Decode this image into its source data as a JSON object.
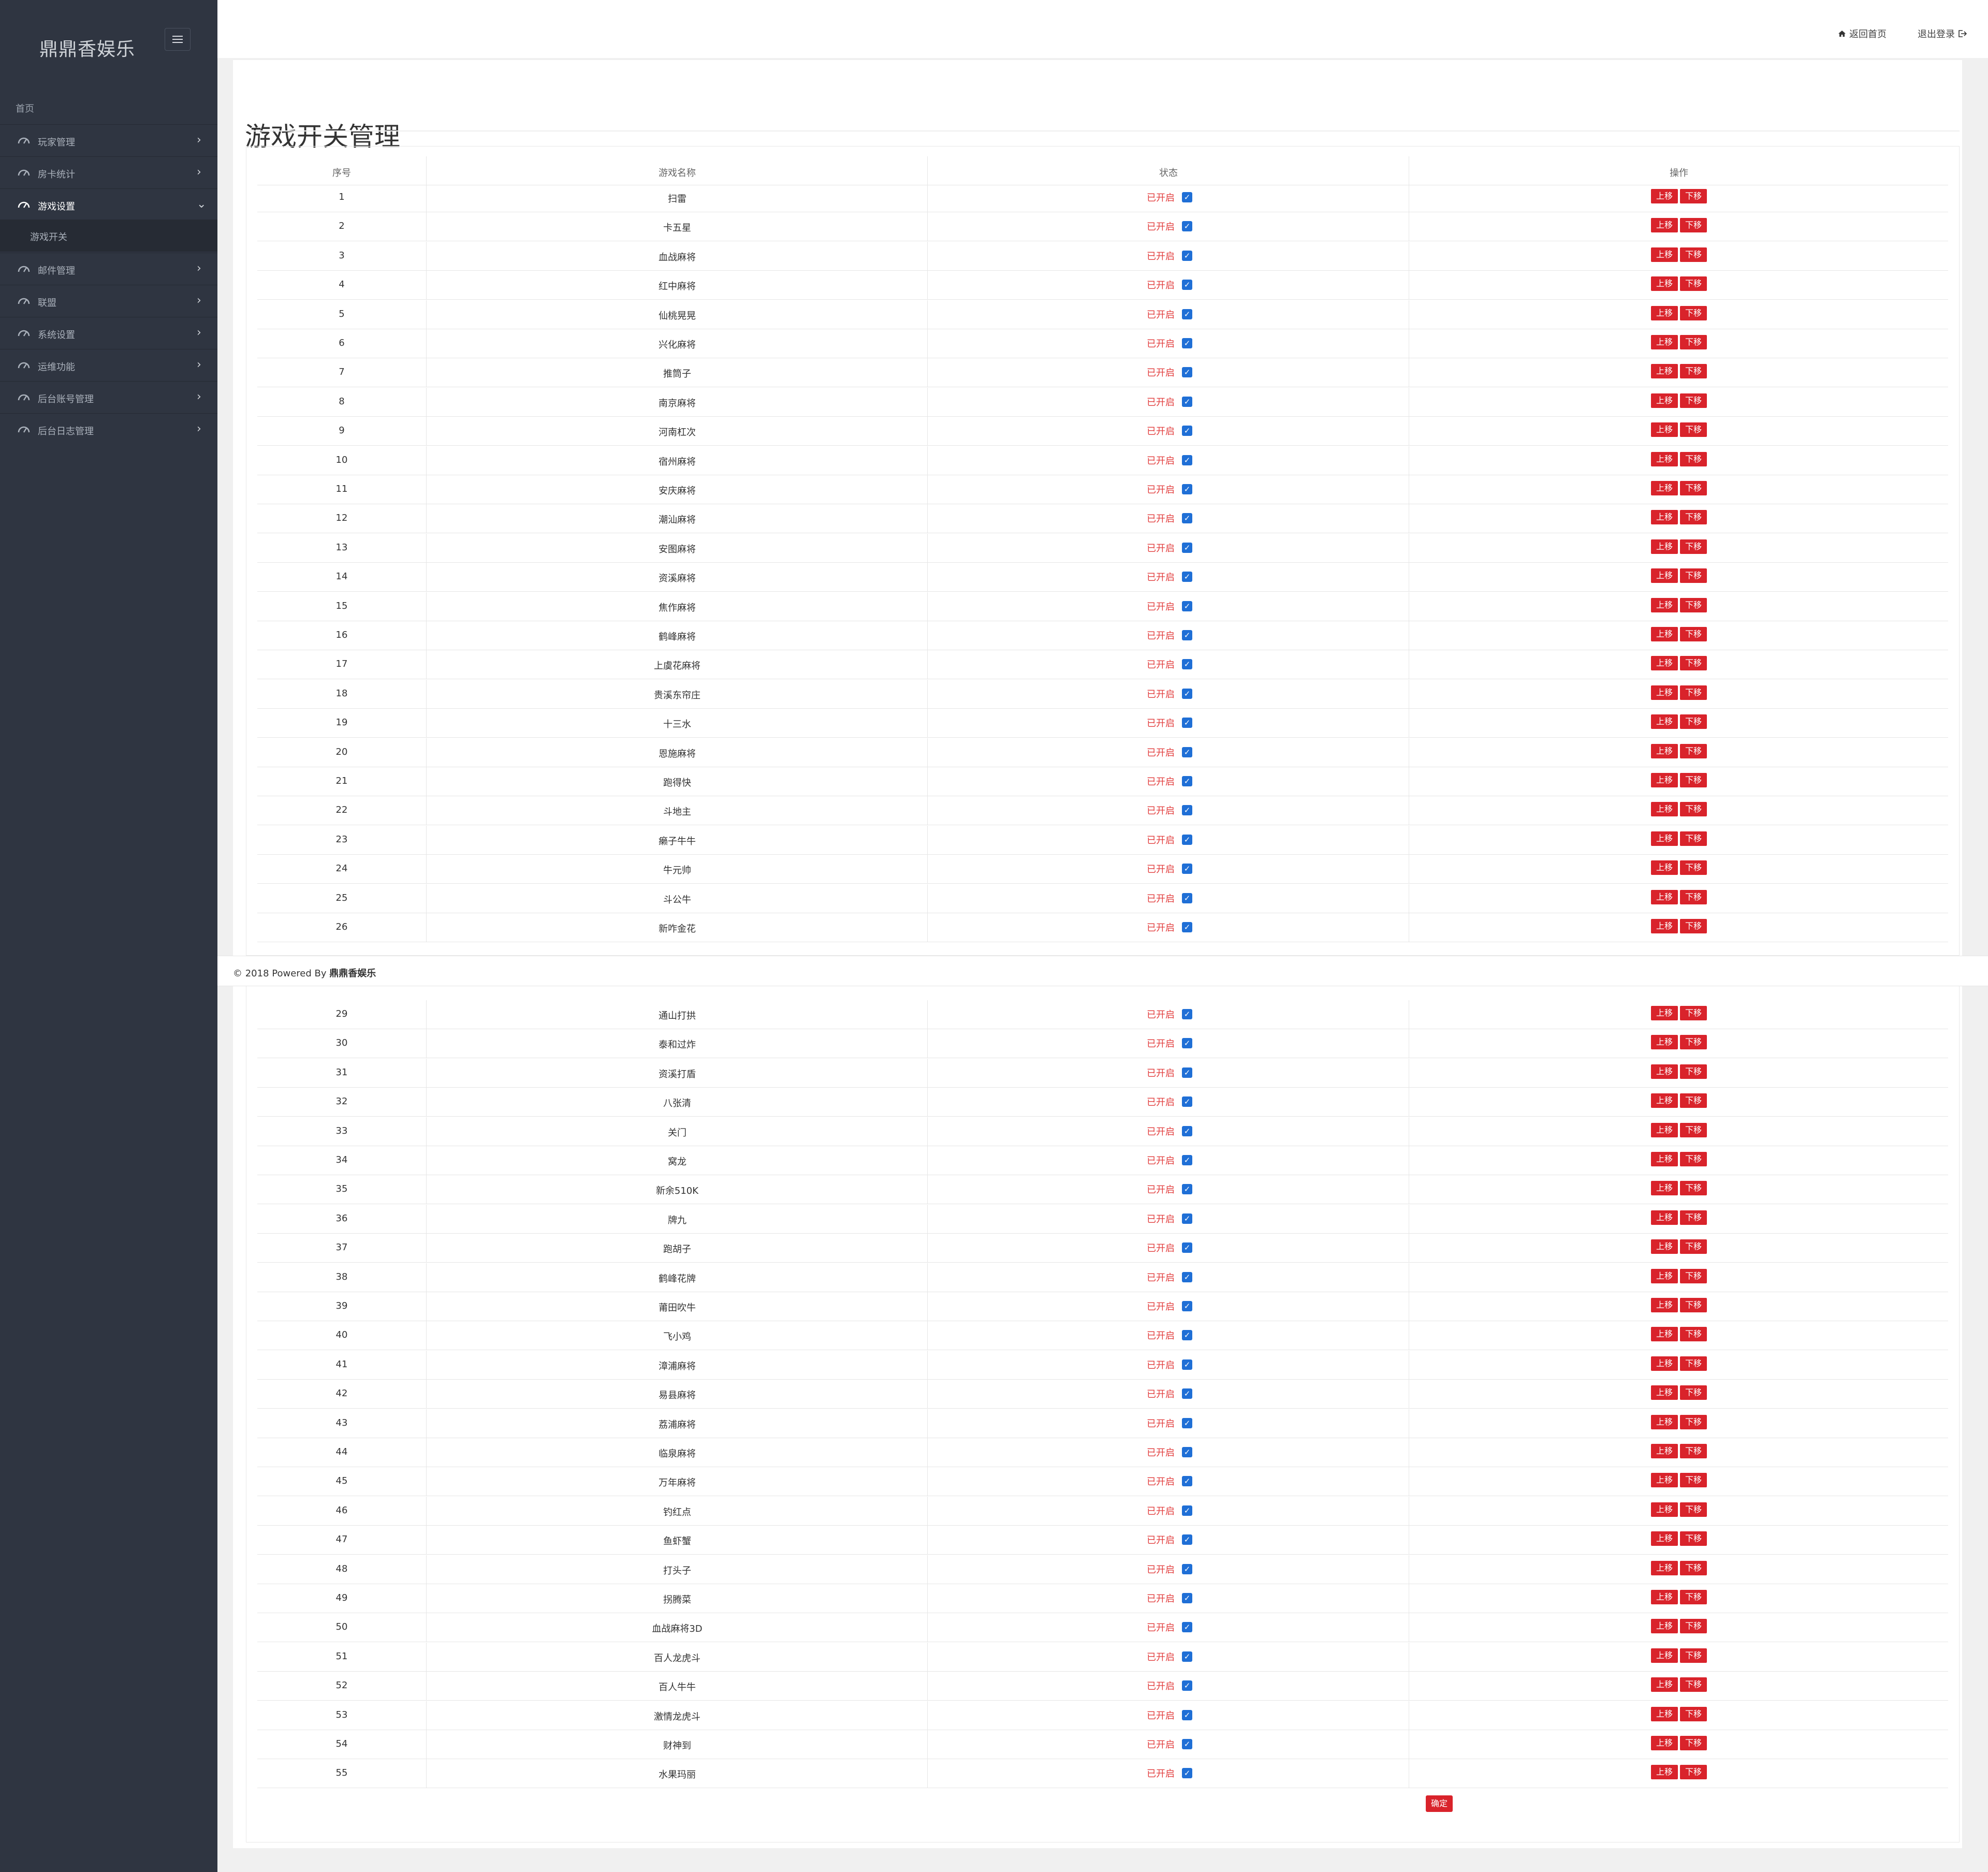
{
  "sidebar": {
    "brand": "鼎鼎香娱乐",
    "home": "首页",
    "items": [
      {
        "label": "玩家管理",
        "active": false
      },
      {
        "label": "房卡统计",
        "active": false
      },
      {
        "label": "游戏设置",
        "active": true
      },
      {
        "label": "邮件管理",
        "active": false
      },
      {
        "label": "联盟",
        "active": false
      },
      {
        "label": "系统设置",
        "active": false
      },
      {
        "label": "运维功能",
        "active": false
      },
      {
        "label": "后台账号管理",
        "active": false
      },
      {
        "label": "后台日志管理",
        "active": false
      }
    ],
    "submenu": "游戏开关"
  },
  "header": {
    "home_link": "返回首页",
    "logout_link": "退出登录"
  },
  "page": {
    "title": "游戏开关管理"
  },
  "table": {
    "columns": [
      "序号",
      "游戏名称",
      "状态",
      "操作"
    ],
    "status_label": "已开启",
    "up_label": "上移",
    "down_label": "下移",
    "rows": [
      {
        "idx": "1",
        "name": "扫雷"
      },
      {
        "idx": "2",
        "name": "卡五星"
      },
      {
        "idx": "3",
        "name": "血战麻将"
      },
      {
        "idx": "4",
        "name": "红中麻将"
      },
      {
        "idx": "5",
        "name": "仙桃晃晃"
      },
      {
        "idx": "6",
        "name": "兴化麻将"
      },
      {
        "idx": "7",
        "name": "推筒子"
      },
      {
        "idx": "8",
        "name": "南京麻将"
      },
      {
        "idx": "9",
        "name": "河南杠次"
      },
      {
        "idx": "10",
        "name": "宿州麻将"
      },
      {
        "idx": "11",
        "name": "安庆麻将"
      },
      {
        "idx": "12",
        "name": "潮汕麻将"
      },
      {
        "idx": "13",
        "name": "安图麻将"
      },
      {
        "idx": "14",
        "name": "资溪麻将"
      },
      {
        "idx": "15",
        "name": "焦作麻将"
      },
      {
        "idx": "16",
        "name": "鹤峰麻将"
      },
      {
        "idx": "17",
        "name": "上虞花麻将"
      },
      {
        "idx": "18",
        "name": "贵溪东帘庄"
      },
      {
        "idx": "19",
        "name": "十三水"
      },
      {
        "idx": "20",
        "name": "恩施麻将"
      },
      {
        "idx": "21",
        "name": "跑得快"
      },
      {
        "idx": "22",
        "name": "斗地主"
      },
      {
        "idx": "23",
        "name": "癞子牛牛"
      },
      {
        "idx": "24",
        "name": "牛元帅"
      },
      {
        "idx": "25",
        "name": "斗公牛"
      },
      {
        "idx": "26",
        "name": "新咋金花"
      },
      {
        "idx": "29",
        "name": "通山打拱"
      },
      {
        "idx": "30",
        "name": "泰和过炸"
      },
      {
        "idx": "31",
        "name": "资溪打盾"
      },
      {
        "idx": "32",
        "name": "八张清"
      },
      {
        "idx": "33",
        "name": "关门"
      },
      {
        "idx": "34",
        "name": "窝龙"
      },
      {
        "idx": "35",
        "name": "新余510K"
      },
      {
        "idx": "36",
        "name": "牌九"
      },
      {
        "idx": "37",
        "name": "跑胡子"
      },
      {
        "idx": "38",
        "name": "鹤峰花牌"
      },
      {
        "idx": "39",
        "name": "莆田吹牛"
      },
      {
        "idx": "40",
        "name": "飞小鸡"
      },
      {
        "idx": "41",
        "name": "漳浦麻将"
      },
      {
        "idx": "42",
        "name": "易县麻将"
      },
      {
        "idx": "43",
        "name": "荔浦麻将"
      },
      {
        "idx": "44",
        "name": "临泉麻将"
      },
      {
        "idx": "45",
        "name": "万年麻将"
      },
      {
        "idx": "46",
        "name": "钓红点"
      },
      {
        "idx": "47",
        "name": "鱼虾蟹"
      },
      {
        "idx": "48",
        "name": "打头子"
      },
      {
        "idx": "49",
        "name": "拐腾菜"
      },
      {
        "idx": "50",
        "name": "血战麻将3D"
      },
      {
        "idx": "51",
        "name": "百人龙虎斗"
      },
      {
        "idx": "52",
        "name": "百人牛牛"
      },
      {
        "idx": "53",
        "name": "激情龙虎斗"
      },
      {
        "idx": "54",
        "name": "财神到"
      },
      {
        "idx": "55",
        "name": "水果玛丽"
      }
    ]
  },
  "confirm_label": "确定",
  "footer": {
    "text": "© 2018 Powered By ",
    "brand": "鼎鼎香娱乐"
  },
  "colors": {
    "sidebar_bg": "#2f3541",
    "accent_red": "#d9232b",
    "status_text": "#e23d3d",
    "checkbox_blue": "#1f6fd6"
  },
  "icons": {
    "nav": "gauge-icon",
    "toggle": "hamburger-icon",
    "home": "home-icon",
    "logout": "sign-out-icon",
    "chevron": "chevron-right-icon"
  }
}
